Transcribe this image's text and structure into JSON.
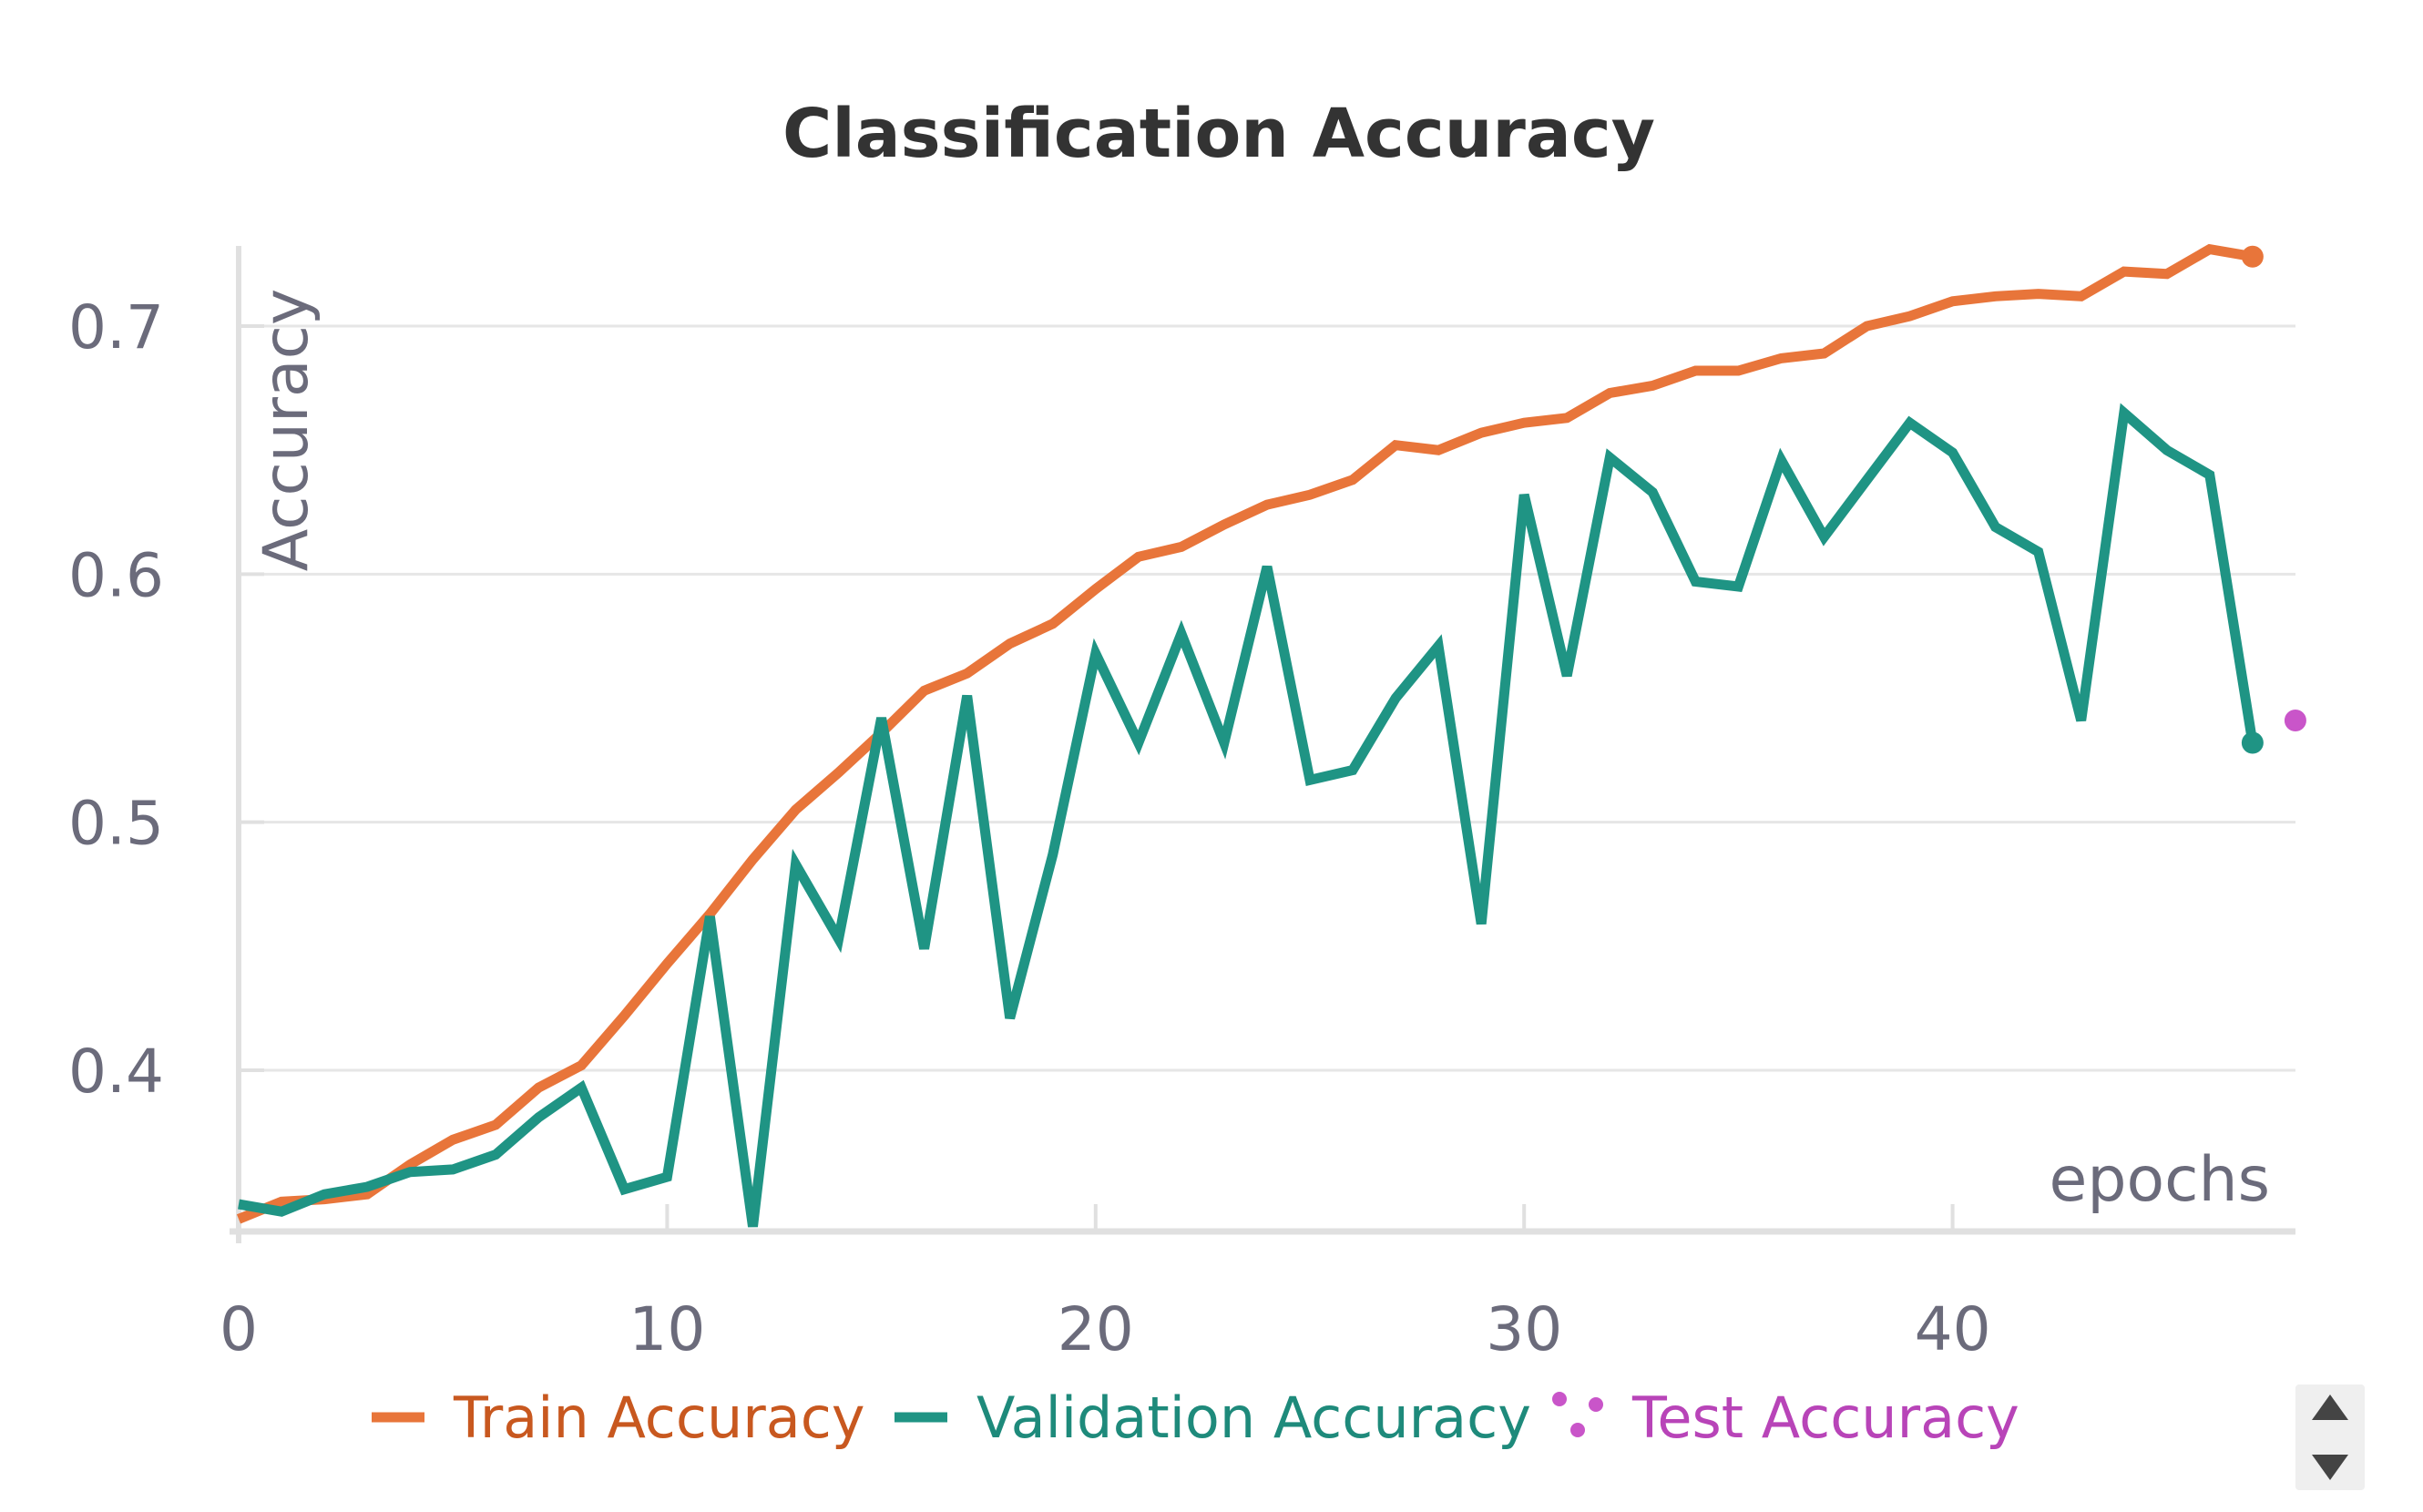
{
  "chart_data": {
    "type": "line",
    "title": "Classification Accuracy",
    "xlabel": "epochs",
    "ylabel": "Accuracy",
    "xlim": [
      0,
      48
    ],
    "ylim": [
      0.34,
      0.73
    ],
    "x_ticks": [
      "0",
      "10",
      "20",
      "30",
      "40"
    ],
    "y_ticks": [
      "0.4",
      "0.5",
      "0.6",
      "0.7"
    ],
    "grid": true,
    "legend_position": "bottom",
    "series": [
      {
        "name": "Train Accuracy",
        "color": "#e8753a",
        "style": "line",
        "x": [
          0,
          1,
          2,
          3,
          4,
          5,
          6,
          7,
          8,
          9,
          10,
          11,
          12,
          13,
          14,
          15,
          16,
          17,
          18,
          19,
          20,
          21,
          22,
          23,
          24,
          25,
          26,
          27,
          28,
          29,
          30,
          31,
          32,
          33,
          34,
          35,
          36,
          37,
          38,
          39,
          40,
          41,
          42,
          43,
          44,
          45,
          46,
          47
        ],
        "values": [
          0.34,
          0.347,
          0.348,
          0.35,
          0.362,
          0.372,
          0.378,
          0.393,
          0.402,
          0.422,
          0.443,
          0.463,
          0.485,
          0.505,
          0.52,
          0.536,
          0.553,
          0.56,
          0.572,
          0.58,
          0.594,
          0.607,
          0.611,
          0.62,
          0.628,
          0.632,
          0.638,
          0.652,
          0.65,
          0.657,
          0.661,
          0.663,
          0.673,
          0.676,
          0.682,
          0.682,
          0.687,
          0.689,
          0.7,
          0.704,
          0.71,
          0.712,
          0.713,
          0.712,
          0.722,
          0.721,
          0.731,
          0.728
        ]
      },
      {
        "name": "Validation Accuracy",
        "color": "#1f9484",
        "style": "line",
        "x": [
          0,
          1,
          2,
          3,
          4,
          5,
          6,
          7,
          8,
          9,
          10,
          11,
          12,
          13,
          14,
          15,
          16,
          17,
          18,
          19,
          20,
          21,
          22,
          23,
          24,
          25,
          26,
          27,
          28,
          29,
          30,
          31,
          32,
          33,
          34,
          35,
          36,
          37,
          38,
          39,
          40,
          41,
          42,
          43,
          44,
          45,
          46,
          47
        ],
        "values": [
          0.346,
          0.343,
          0.35,
          0.353,
          0.359,
          0.36,
          0.366,
          0.381,
          0.393,
          0.352,
          0.357,
          0.462,
          0.337,
          0.483,
          0.453,
          0.542,
          0.449,
          0.551,
          0.421,
          0.487,
          0.568,
          0.532,
          0.576,
          0.532,
          0.603,
          0.517,
          0.521,
          0.55,
          0.571,
          0.459,
          0.632,
          0.559,
          0.647,
          0.633,
          0.597,
          0.595,
          0.646,
          0.615,
          0.638,
          0.661,
          0.649,
          0.619,
          0.609,
          0.541,
          0.665,
          0.65,
          0.64,
          0.532
        ]
      },
      {
        "name": "Test Accuracy",
        "color": "#c955c9",
        "style": "point",
        "x": [
          48
        ],
        "values": [
          0.541
        ]
      }
    ]
  },
  "scroll_control": {
    "up_icon": "triangle-up-icon",
    "down_icon": "triangle-down-icon",
    "background": "#efefef",
    "icon_color": "#444444"
  }
}
